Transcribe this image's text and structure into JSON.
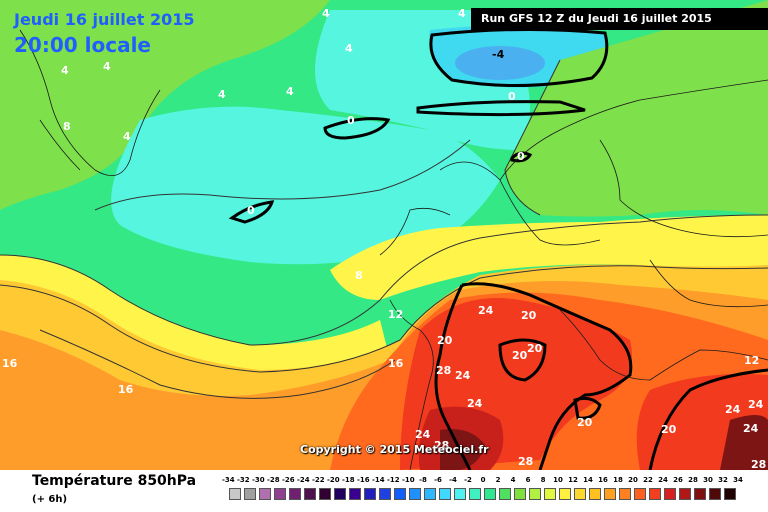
{
  "header": {
    "date_line": "Jeudi 16 juillet 2015",
    "time_line": "20:00 locale",
    "run_label": "Run GFS 12 Z du Jeudi 16 juillet 2015"
  },
  "map": {
    "copyright": "Copyright © 2015 Meteociel.fr",
    "contour_labels": {
      "four_a": "4",
      "four_b": "4",
      "four_c": "4",
      "four_d": "4",
      "four_e": "4",
      "four_f": "4",
      "four_g": "4",
      "four_h": "4",
      "minus_four": "-4",
      "zero_a": "0",
      "zero_b": "0",
      "zero_c": "0",
      "zero_d": "0",
      "eight_a": "8",
      "eight_b": "8",
      "twelve_a": "12",
      "twelve_b": "12",
      "sixteen_a": "16",
      "sixteen_b": "16",
      "sixteen_c": "16",
      "twenty_a": "20",
      "twenty_b": "20",
      "twenty_c": "20",
      "twenty_d": "20",
      "twenty_e": "20",
      "twenty_f": "20",
      "twentyfour_a": "24",
      "twentyfour_b": "24",
      "twentyfour_c": "24",
      "twentyfour_d": "24",
      "twentyfour_e": "24",
      "twentyfour_f": "24",
      "twentyfour_g": "24",
      "twentyeight_a": "28",
      "twentyeight_b": "28",
      "twentyeight_c": "28",
      "twentyeight_d": "28"
    },
    "colors": {
      "sea_green": "#34e886",
      "cool_cyan": "#55f5df",
      "cyan_deep": "#3fd9f0",
      "light_blue": "#4ab0f0",
      "lime": "#7ee04a",
      "yellow": "#fff54a",
      "light_orange": "#ffc934",
      "orange": "#ff9d2a",
      "orange_red": "#ff6a1f",
      "red": "#f23b1e",
      "dark_red": "#c8201a",
      "maroon": "#7e1515"
    }
  },
  "footer": {
    "title": "Température 850hPa",
    "subtitle": "(+ 6h)"
  },
  "legend": {
    "ticks": [
      "-34",
      "-32",
      "-30",
      "-28",
      "-26",
      "-24",
      "-22",
      "-20",
      "-18",
      "-16",
      "-14",
      "-12",
      "-10",
      "-8",
      "-6",
      "-4",
      "-2",
      "0",
      "2",
      "4",
      "6",
      "8",
      "10",
      "12",
      "14",
      "16",
      "18",
      "20",
      "22",
      "24",
      "26",
      "28",
      "30",
      "32",
      "34"
    ],
    "colors": [
      "#c8c8c8",
      "#a0a0a0",
      "#b070b0",
      "#904090",
      "#702070",
      "#501050",
      "#300030",
      "#200060",
      "#3a0090",
      "#2020c0",
      "#2040e0",
      "#1060ff",
      "#2090ff",
      "#30b8ff",
      "#40d8ff",
      "#50f0f0",
      "#40f0c0",
      "#30e890",
      "#50e060",
      "#80e040",
      "#b0f040",
      "#e0f840",
      "#fff040",
      "#ffd830",
      "#ffc020",
      "#ffa020",
      "#ff8020",
      "#ff6020",
      "#f04020",
      "#d82020",
      "#b01818",
      "#801010",
      "#500808",
      "#200000"
    ]
  }
}
